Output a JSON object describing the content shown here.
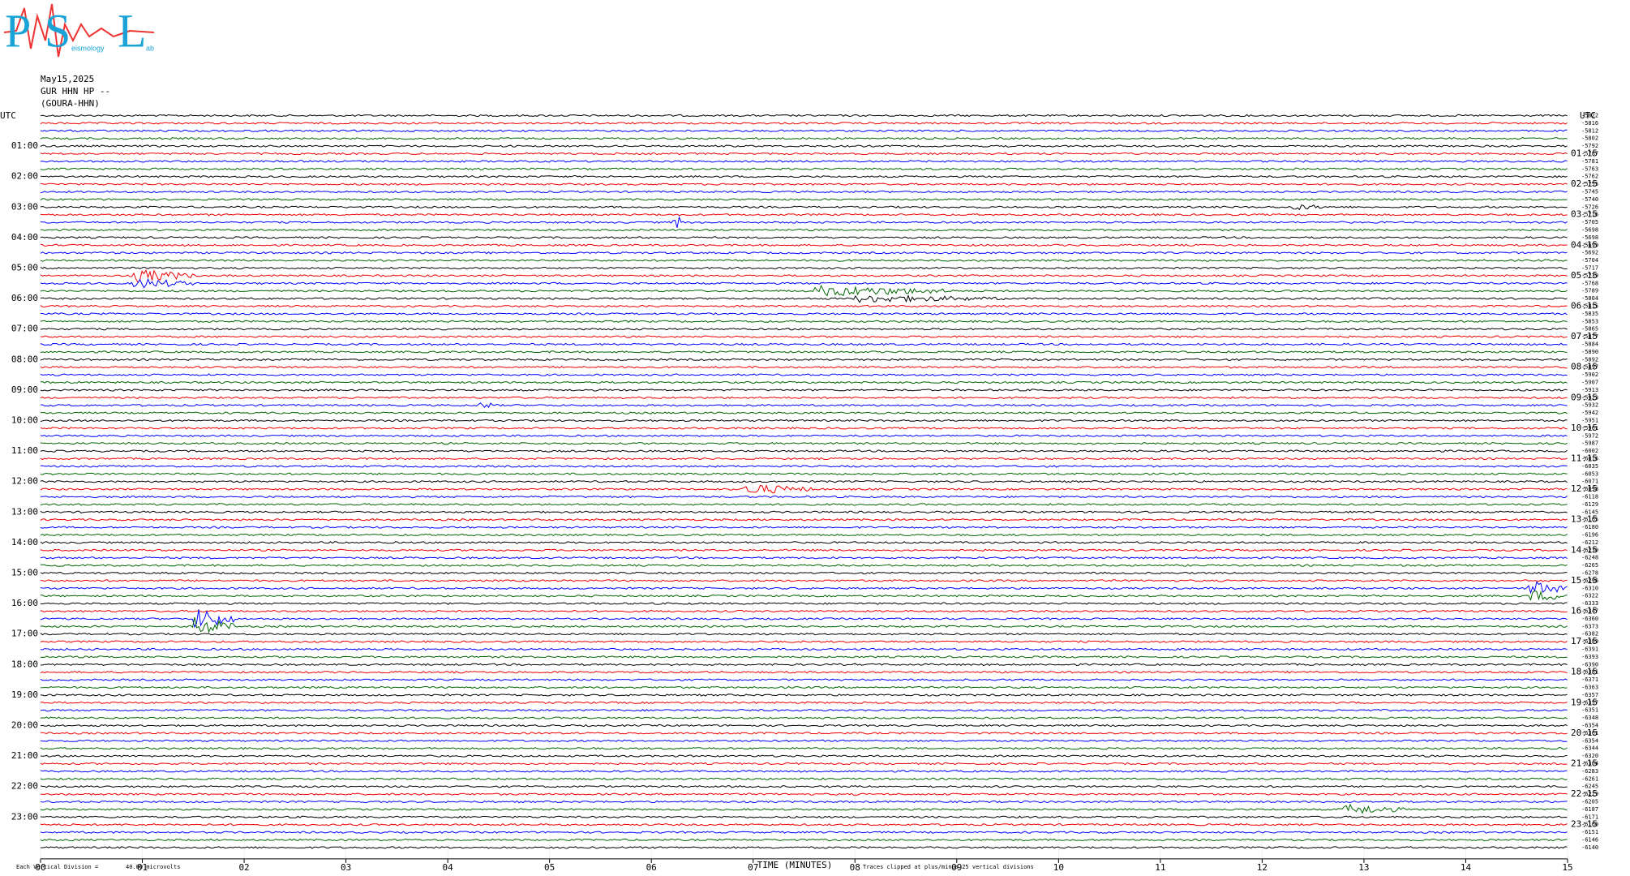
{
  "logo": {
    "letters": [
      "P",
      "S",
      "L"
    ],
    "words": [
      "eismology",
      "ab"
    ]
  },
  "header": {
    "date": "May15,2025",
    "station": "GUR HHN HP --",
    "site": "(GOURA-HHN)"
  },
  "left_axis": {
    "title": "UTC",
    "labels": [
      "01:00",
      "02:00",
      "03:00",
      "04:00",
      "05:00",
      "06:00",
      "07:00",
      "08:00",
      "09:00",
      "10:00",
      "11:00",
      "12:00",
      "13:00",
      "14:00",
      "15:00",
      "16:00",
      "17:00",
      "18:00",
      "19:00",
      "20:00",
      "21:00",
      "22:00",
      "23:00"
    ]
  },
  "right_axis": {
    "title": "UTC",
    "labels": [
      "01:15",
      "02:15",
      "03:15",
      "04:15",
      "05:15",
      "06:15",
      "07:15",
      "08:15",
      "09:15",
      "10:15",
      "11:15",
      "12:15",
      "13:15",
      "14:15",
      "15:15",
      "16:15",
      "17:15",
      "18:15",
      "19:15",
      "20:15",
      "21:15",
      "22:15",
      "23:15"
    ]
  },
  "offsets": [
    -5822,
    -5816,
    -5812,
    -5802,
    -5792,
    -5787,
    -5781,
    -5763,
    -5762,
    -5755,
    -5745,
    -5740,
    -5726,
    -5716,
    -5705,
    -5698,
    -5698,
    -5699,
    -5692,
    -5704,
    -5717,
    -5739,
    -5768,
    -5789,
    -5804,
    -5815,
    -5835,
    -5853,
    -5865,
    -5877,
    -5884,
    -5890,
    -5892,
    -5897,
    -5902,
    -5907,
    -5913,
    -5923,
    -5932,
    -5942,
    -5951,
    -5961,
    -5972,
    -5987,
    -6002,
    -6016,
    -6035,
    -6053,
    -6071,
    -6098,
    -6118,
    -6129,
    -6145,
    -6165,
    -6180,
    -6196,
    -6212,
    -6230,
    -6248,
    -6265,
    -6278,
    -6296,
    -6310,
    -6322,
    -6333,
    -6347,
    -6360,
    -6373,
    -6382,
    -6389,
    -6391,
    -6393,
    -6390,
    -6381,
    -6371,
    -6363,
    -6357,
    -6357,
    -6351,
    -6348,
    -6354,
    -6361,
    -6354,
    -6344,
    -6320,
    -6304,
    -6283,
    -6261,
    -6245,
    -6229,
    -6205,
    -6187,
    -6171,
    -6160,
    -6151,
    -6146,
    -6140
  ],
  "x_axis": {
    "ticks": [
      "00",
      "01",
      "02",
      "03",
      "04",
      "05",
      "06",
      "07",
      "08",
      "09",
      "10",
      "11",
      "12",
      "13",
      "14",
      "15"
    ],
    "title": "TIME (MINUTES)"
  },
  "footer": {
    "division": "Each Vertical Division =",
    "scale": "40.00 microvolts",
    "clip_note": "Traces clipped at plus/minus 25 vertical divisions"
  }
}
